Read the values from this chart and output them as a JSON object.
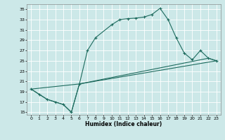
{
  "xlabel": "Humidex (Indice chaleur)",
  "bg_color": "#cce8e8",
  "grid_color": "#ffffff",
  "line_color": "#1e6b5e",
  "xlim": [
    -0.5,
    23.5
  ],
  "ylim": [
    14.5,
    36
  ],
  "xticks": [
    0,
    1,
    2,
    3,
    4,
    5,
    6,
    7,
    8,
    9,
    10,
    11,
    12,
    13,
    14,
    15,
    16,
    17,
    18,
    19,
    20,
    21,
    22,
    23
  ],
  "yticks": [
    15,
    17,
    19,
    21,
    23,
    25,
    27,
    29,
    31,
    33,
    35
  ],
  "line1_x": [
    0,
    1,
    2,
    3,
    4,
    5,
    6,
    7,
    8,
    10,
    11,
    12,
    13,
    14,
    15,
    16,
    17,
    18,
    19,
    20,
    21,
    22,
    23
  ],
  "line1_y": [
    19.5,
    18.5,
    17.5,
    17.0,
    16.5,
    15.0,
    20.5,
    27.0,
    29.5,
    32.0,
    33.0,
    33.2,
    33.3,
    33.5,
    34.0,
    35.2,
    33.0,
    29.5,
    26.5,
    25.2,
    27.0,
    25.5,
    25.0
  ],
  "line2_x": [
    0,
    2,
    3,
    4,
    5,
    6,
    22,
    23
  ],
  "line2_y": [
    19.5,
    17.5,
    17.0,
    16.5,
    15.0,
    20.5,
    25.5,
    25.0
  ],
  "line3_x": [
    0,
    6,
    23
  ],
  "line3_y": [
    19.5,
    20.5,
    25.0
  ],
  "tick_fontsize": 4.5,
  "xlabel_fontsize": 5.5
}
